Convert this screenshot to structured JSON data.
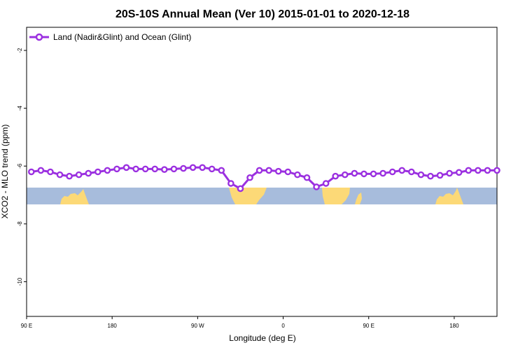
{
  "chart_data": {
    "type": "line",
    "title": "20S-10S Annual Mean (Ver 10)   2015-01-01 to 2020-12-18",
    "xlabel": "Longitude (deg E)",
    "ylabel": "XCO2 - MLO trend (ppm)",
    "xlim": [
      90,
      585
    ],
    "ylim": [
      -11.2,
      -1.2
    ],
    "x_ticks": [
      {
        "value": 90,
        "label": "90 E"
      },
      {
        "value": 180,
        "label": "180"
      },
      {
        "value": 270,
        "label": "90 W"
      },
      {
        "value": 360,
        "label": "0"
      },
      {
        "value": 450,
        "label": "90 E"
      },
      {
        "value": 540,
        "label": "180"
      }
    ],
    "y_ticks": [
      {
        "value": -2,
        "label": "-2"
      },
      {
        "value": -4,
        "label": "-4"
      },
      {
        "value": -6,
        "label": "-6"
      },
      {
        "value": -8,
        "label": "-8"
      },
      {
        "value": -10,
        "label": "-10"
      }
    ],
    "legend_position": "top-left",
    "grid": false,
    "colors": {
      "series": "#9b30e0",
      "ocean": "#a7bcdc",
      "land": "#fcd977"
    },
    "series": [
      {
        "name": "Land (Nadir&Glint) and Ocean (Glint)",
        "x": [
          95,
          105,
          115,
          125,
          135,
          145,
          155,
          165,
          175,
          185,
          195,
          205,
          215,
          225,
          235,
          245,
          255,
          265,
          275,
          285,
          295,
          305,
          315,
          325,
          335,
          345,
          355,
          365,
          375,
          385,
          395,
          405,
          415,
          425,
          435,
          445,
          455,
          465,
          475,
          485,
          495,
          505,
          515,
          525,
          535,
          545,
          555,
          565,
          575,
          585
        ],
        "y": [
          -6.2,
          -6.15,
          -6.2,
          -6.3,
          -6.35,
          -6.3,
          -6.25,
          -6.2,
          -6.15,
          -6.1,
          -6.05,
          -6.1,
          -6.1,
          -6.1,
          -6.12,
          -6.1,
          -6.08,
          -6.05,
          -6.05,
          -6.1,
          -6.15,
          -6.6,
          -6.78,
          -6.4,
          -6.15,
          -6.15,
          -6.18,
          -6.2,
          -6.3,
          -6.4,
          -6.72,
          -6.6,
          -6.35,
          -6.3,
          -6.25,
          -6.27,
          -6.27,
          -6.25,
          -6.2,
          -6.15,
          -6.2,
          -6.3,
          -6.35,
          -6.32,
          -6.25,
          -6.22,
          -6.15,
          -6.15,
          -6.15,
          -6.15
        ]
      }
    ]
  }
}
